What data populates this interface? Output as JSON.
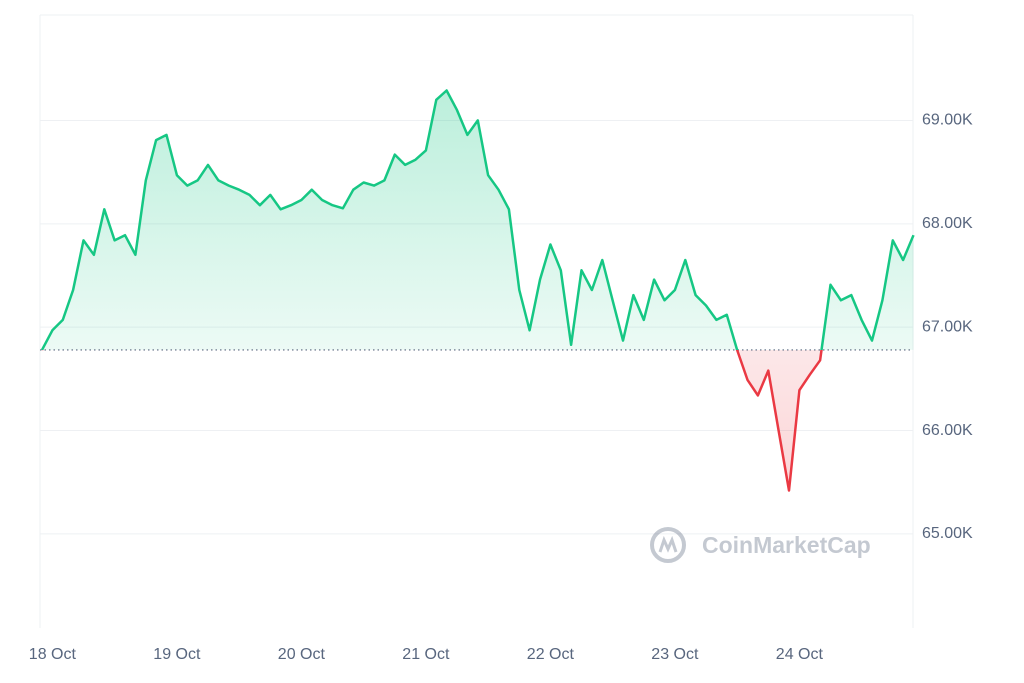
{
  "chart_data": {
    "type": "line",
    "watermark": "CoinMarketCap",
    "categories": [
      null,
      "18 Oct",
      null,
      null,
      null,
      null,
      null,
      null,
      null,
      null,
      null,
      null,
      null,
      "19 Oct",
      null,
      null,
      null,
      null,
      null,
      null,
      null,
      null,
      null,
      null,
      null,
      "20 Oct",
      null,
      null,
      null,
      null,
      null,
      null,
      null,
      null,
      null,
      null,
      null,
      "21 Oct",
      null,
      null,
      null,
      null,
      null,
      null,
      null,
      null,
      null,
      null,
      null,
      "22 Oct",
      null,
      null,
      null,
      null,
      null,
      null,
      null,
      null,
      null,
      null,
      null,
      "23 Oct",
      null,
      null,
      null,
      null,
      null,
      null,
      null,
      null,
      null,
      null,
      null,
      "24 Oct",
      null,
      null,
      null,
      null,
      null,
      null,
      null,
      null,
      null,
      null,
      null
    ],
    "values": [
      66.78,
      66.97,
      67.07,
      67.36,
      67.84,
      67.7,
      68.14,
      67.84,
      67.89,
      67.7,
      68.42,
      68.81,
      68.86,
      68.47,
      68.37,
      68.42,
      68.57,
      68.42,
      68.37,
      68.33,
      68.28,
      68.18,
      68.28,
      68.14,
      68.18,
      68.23,
      68.33,
      68.23,
      68.18,
      68.15,
      68.33,
      68.4,
      68.37,
      68.42,
      68.67,
      68.57,
      68.62,
      68.71,
      69.2,
      69.29,
      69.1,
      68.86,
      69.0,
      68.47,
      68.33,
      68.14,
      67.36,
      66.97,
      67.46,
      67.8,
      67.55,
      66.83,
      67.55,
      67.36,
      67.65,
      67.26,
      66.87,
      67.31,
      67.07,
      67.46,
      67.26,
      67.36,
      67.65,
      67.31,
      67.21,
      67.07,
      67.12,
      66.78,
      66.49,
      66.34,
      66.58,
      66.0,
      65.42,
      66.39,
      66.54,
      66.68,
      67.41,
      67.26,
      67.31,
      67.07,
      66.87,
      67.26,
      67.84,
      67.65,
      67.89
    ],
    "baseline": 66.78,
    "color": "#16c784",
    "below_color": "#ea3943",
    "ylim": [
      64.09,
      70.02
    ],
    "yticks": [
      {
        "value": 65,
        "label": "65.00K"
      },
      {
        "value": 66,
        "label": "66.00K"
      },
      {
        "value": 67,
        "label": "67.00K"
      },
      {
        "value": 68,
        "label": "68.00K"
      },
      {
        "value": 69,
        "label": "69.00K"
      }
    ],
    "grid": true
  }
}
